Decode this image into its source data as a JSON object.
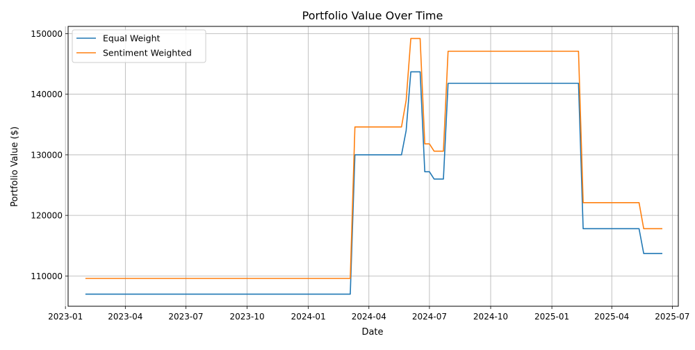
{
  "chart_data": {
    "type": "line",
    "title": "Portfolio Value Over Time",
    "xlabel": "Date",
    "ylabel": "Portfolio Value ($)",
    "xlim": [
      "2023-01-05",
      "2025-07-10"
    ],
    "ylim": [
      105000,
      151200
    ],
    "x_ticks": [
      "2023-01",
      "2023-04",
      "2023-07",
      "2023-10",
      "2024-01",
      "2024-04",
      "2024-07",
      "2024-10",
      "2025-01",
      "2025-04",
      "2025-07"
    ],
    "y_ticks": [
      110000,
      120000,
      130000,
      140000,
      150000
    ],
    "grid": true,
    "legend_position": "top-left",
    "series": [
      {
        "name": "Equal Weight",
        "color": "#1f77b4",
        "points": [
          [
            "2023-01-31",
            107000
          ],
          [
            "2024-03-04",
            107000
          ],
          [
            "2024-03-11",
            130000
          ],
          [
            "2024-05-20",
            130000
          ],
          [
            "2024-05-27",
            134000
          ],
          [
            "2024-06-03",
            143700
          ],
          [
            "2024-06-17",
            143700
          ],
          [
            "2024-06-24",
            127200
          ],
          [
            "2024-07-01",
            127200
          ],
          [
            "2024-07-08",
            126000
          ],
          [
            "2024-07-22",
            126000
          ],
          [
            "2024-07-29",
            141800
          ],
          [
            "2025-02-10",
            141800
          ],
          [
            "2025-02-17",
            117800
          ],
          [
            "2025-05-12",
            117800
          ],
          [
            "2025-05-19",
            113700
          ],
          [
            "2025-06-16",
            113700
          ]
        ]
      },
      {
        "name": "Sentiment Weighted",
        "color": "#ff7f0e",
        "points": [
          [
            "2023-01-31",
            109600
          ],
          [
            "2024-03-04",
            109600
          ],
          [
            "2024-03-11",
            134600
          ],
          [
            "2024-05-20",
            134600
          ],
          [
            "2024-05-27",
            139000
          ],
          [
            "2024-06-03",
            149200
          ],
          [
            "2024-06-17",
            149200
          ],
          [
            "2024-06-24",
            131800
          ],
          [
            "2024-07-01",
            131800
          ],
          [
            "2024-07-08",
            130600
          ],
          [
            "2024-07-22",
            130600
          ],
          [
            "2024-07-29",
            147100
          ],
          [
            "2025-02-10",
            147100
          ],
          [
            "2025-02-17",
            122100
          ],
          [
            "2025-05-12",
            122100
          ],
          [
            "2025-05-19",
            117800
          ],
          [
            "2025-06-16",
            117800
          ]
        ]
      }
    ]
  }
}
